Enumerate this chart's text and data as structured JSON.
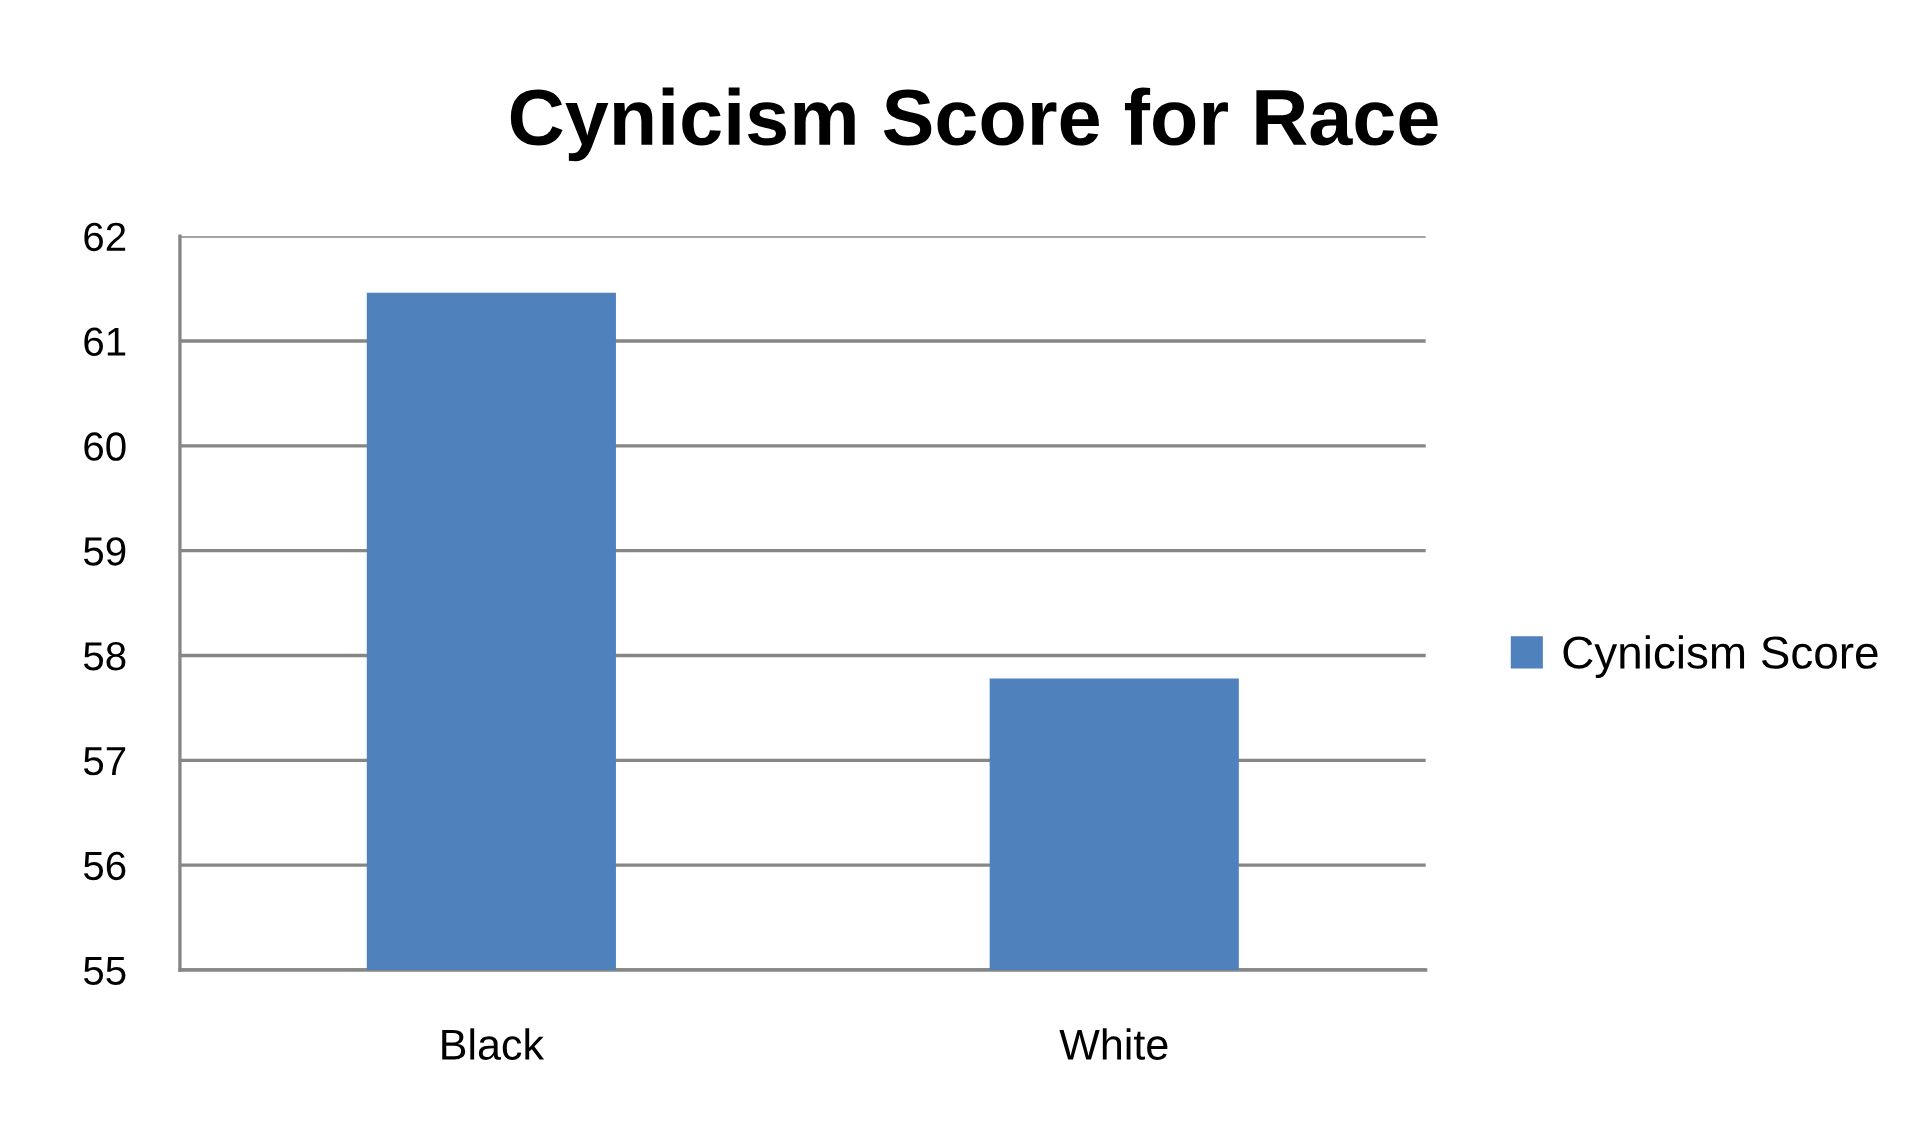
{
  "chart_data": {
    "type": "bar",
    "title": "Cynicism Score for Race",
    "categories": [
      "Black",
      "White"
    ],
    "series": [
      {
        "name": "Cynicism Score",
        "color": "#4f81bd",
        "values": [
          61.46,
          57.78
        ]
      }
    ],
    "ylim": [
      55,
      62
    ],
    "yticks": [
      55,
      56,
      57,
      58,
      59,
      60,
      61,
      62
    ],
    "grid": "y",
    "legend": "right"
  }
}
